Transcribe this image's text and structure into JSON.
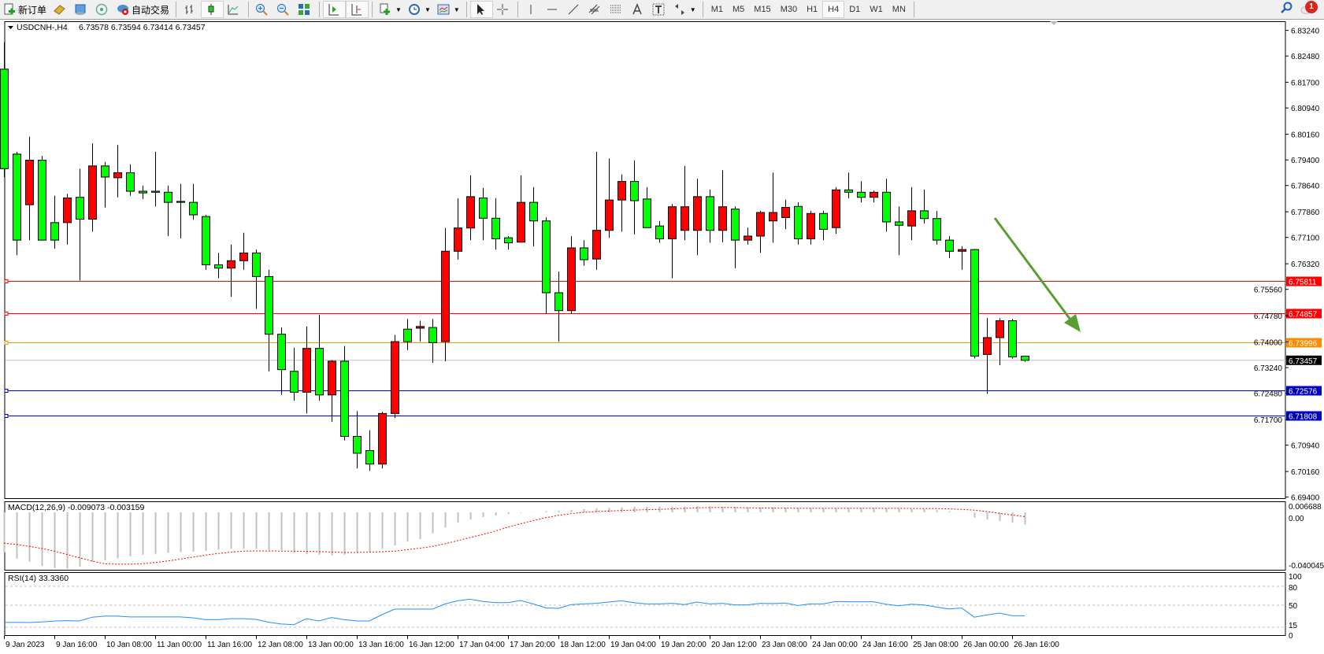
{
  "toolbar": {
    "new_order_label": "新订单",
    "auto_trading_label": "自动交易",
    "timeframes": [
      "M1",
      "M5",
      "M15",
      "M30",
      "H1",
      "H4",
      "D1",
      "W1",
      "MN"
    ],
    "active_timeframe": "H4",
    "notification_count": "1"
  },
  "chart_header": {
    "symbol_label": "USDCNH-,H4",
    "ohlc_text": "6.73578 6.73594 6.73414 6.73457"
  },
  "chart_data": [
    {
      "type": "candlestick",
      "symbol": "USDCNH-",
      "timeframe": "H4",
      "ylim": [
        6.694,
        6.8324
      ],
      "price_ticks": [
        "6.83240",
        "6.82480",
        "6.81700",
        "6.80940",
        "6.80160",
        "6.79400",
        "6.78640",
        "6.77860",
        "6.77100",
        "6.76320",
        "6.75560",
        "6.74780",
        "6.74000",
        "6.73240",
        "6.72480",
        "6.71700",
        "6.70940",
        "6.70160",
        "6.69400"
      ],
      "x_tick_labels": [
        "9 Jan 2023",
        "9 Jan 16:00",
        "10 Jan 08:00",
        "11 Jan 00:00",
        "11 Jan 16:00",
        "12 Jan 08:00",
        "13 Jan 00:00",
        "13 Jan 16:00",
        "16 Jan 12:00",
        "17 Jan 04:00",
        "17 Jan 20:00",
        "18 Jan 12:00",
        "19 Jan 04:00",
        "19 Jan 20:00",
        "20 Jan 12:00",
        "23 Jan 08:00",
        "24 Jan 00:00",
        "24 Jan 16:00",
        "25 Jan 08:00",
        "26 Jan 00:00",
        "26 Jan 16:00"
      ],
      "bull_color": "#ff0000",
      "bear_color": "#00ff00",
      "ohlc": [
        [
          6.8209,
          6.8289,
          6.7889,
          6.7914
        ],
        [
          6.7957,
          6.7964,
          6.7657,
          6.7702
        ],
        [
          6.7807,
          6.8009,
          6.7702,
          6.7939
        ],
        [
          6.7939,
          6.7952,
          6.7702,
          6.7702
        ],
        [
          6.7754,
          6.7834,
          6.7677,
          6.7702
        ],
        [
          6.7754,
          6.7839,
          6.7689,
          6.7827
        ],
        [
          6.7829,
          6.7914,
          6.7582,
          6.7764
        ],
        [
          6.7764,
          6.7989,
          6.7727,
          6.7922
        ],
        [
          6.7922,
          6.7934,
          6.7799,
          6.7889
        ],
        [
          6.7887,
          6.7984,
          6.7829,
          6.7902
        ],
        [
          6.7902,
          6.7927,
          6.7834,
          6.7847
        ],
        [
          6.7847,
          6.7864,
          6.7824,
          6.7842
        ],
        [
          6.7847,
          6.7964,
          6.7802,
          6.7844
        ],
        [
          6.7844,
          6.7864,
          6.7714,
          6.7814
        ],
        [
          6.7817,
          6.7869,
          6.7707,
          6.7814
        ],
        [
          6.7814,
          6.7869,
          6.7762,
          6.7777
        ],
        [
          6.7772,
          6.7777,
          6.7614,
          6.7629
        ],
        [
          6.7629,
          6.7664,
          6.7589,
          6.7619
        ],
        [
          6.7619,
          6.7689,
          6.7534,
          6.7641
        ],
        [
          6.7641,
          6.7724,
          6.7614,
          6.7664
        ],
        [
          6.7664,
          6.7674,
          6.7498,
          6.7594
        ],
        [
          6.7594,
          6.7614,
          6.7313,
          6.7423
        ],
        [
          6.7423,
          6.7443,
          6.7243,
          6.7318
        ],
        [
          6.7313,
          6.7383,
          6.7226,
          6.7251
        ],
        [
          6.7251,
          6.7446,
          6.7188,
          6.7381
        ],
        [
          6.7381,
          6.7481,
          6.7226,
          6.7243
        ],
        [
          6.7243,
          6.7346,
          6.7163,
          6.7343
        ],
        [
          6.7343,
          6.7388,
          6.7108,
          6.712
        ],
        [
          6.712,
          6.7195,
          6.7025,
          6.707
        ],
        [
          6.7078,
          6.7138,
          6.7018,
          6.7038
        ],
        [
          6.7038,
          6.7193,
          6.7025,
          6.7188
        ],
        [
          6.7188,
          6.7421,
          6.7175,
          6.7401
        ],
        [
          6.7438,
          6.7468,
          6.7376,
          6.7401
        ],
        [
          6.7441,
          6.7463,
          6.7401,
          6.7446
        ],
        [
          6.7443,
          6.7468,
          6.7338,
          6.7398
        ],
        [
          6.7401,
          6.7738,
          6.7343,
          6.7669
        ],
        [
          6.7669,
          6.7826,
          6.7644,
          6.7738
        ],
        [
          6.7738,
          6.7894,
          6.7702,
          6.7831
        ],
        [
          6.7827,
          6.7857,
          6.7702,
          6.7767
        ],
        [
          6.7767,
          6.7827,
          6.7674,
          6.7706
        ],
        [
          6.7709,
          6.7714,
          6.7674,
          6.7694
        ],
        [
          6.7696,
          6.7894,
          6.7696,
          6.7814
        ],
        [
          6.7814,
          6.7859,
          6.7684,
          6.7759
        ],
        [
          6.7759,
          6.7769,
          6.7483,
          6.7546
        ],
        [
          6.7546,
          6.7609,
          6.7401,
          6.7493
        ],
        [
          6.7493,
          6.7714,
          6.7483,
          6.7679
        ],
        [
          6.7679,
          6.7702,
          6.7626,
          6.7644
        ],
        [
          6.7646,
          6.7964,
          6.7614,
          6.7731
        ],
        [
          6.7731,
          6.7944,
          6.7709,
          6.7821
        ],
        [
          6.7821,
          6.7897,
          6.7727,
          6.7876
        ],
        [
          6.7876,
          6.7939,
          6.7719,
          6.7819
        ],
        [
          6.7824,
          6.7859,
          6.7739,
          6.7739
        ],
        [
          6.7744,
          6.7759,
          6.7694,
          6.7706
        ],
        [
          6.7706,
          6.7809,
          6.7589,
          6.7801
        ],
        [
          6.7731,
          6.7922,
          6.7702,
          6.7801
        ],
        [
          6.7731,
          6.7884,
          6.7657,
          6.7831
        ],
        [
          6.7831,
          6.7852,
          6.7694,
          6.7731
        ],
        [
          6.7731,
          6.7909,
          6.7696,
          6.7801
        ],
        [
          6.7794,
          6.7802,
          6.7619,
          6.7702
        ],
        [
          6.7702,
          6.7739,
          6.7689,
          6.7714
        ],
        [
          6.7714,
          6.7789,
          6.7664,
          6.7784
        ],
        [
          6.7759,
          6.7902,
          6.7694,
          6.7784
        ],
        [
          6.7769,
          6.7822,
          6.7734,
          6.7799
        ],
        [
          6.7802,
          6.7814,
          6.7689,
          6.7706
        ],
        [
          6.7706,
          6.7789,
          6.7689,
          6.7781
        ],
        [
          6.7781,
          6.7789,
          6.7702,
          6.7734
        ],
        [
          6.7739,
          6.7859,
          6.7721,
          6.7851
        ],
        [
          6.7851,
          6.7902,
          6.7826,
          6.7844
        ],
        [
          6.7844,
          6.7877,
          6.7814,
          6.7829
        ],
        [
          6.7829,
          6.7849,
          6.7814,
          6.7844
        ],
        [
          6.7844,
          6.7884,
          6.7727,
          6.7756
        ],
        [
          6.7756,
          6.7802,
          6.7657,
          6.7746
        ],
        [
          6.7744,
          6.7859,
          6.7702,
          6.7789
        ],
        [
          6.7789,
          6.7852,
          6.7751,
          6.7766
        ],
        [
          6.7766,
          6.7789,
          6.7689,
          6.7702
        ],
        [
          6.7702,
          6.7714,
          6.7649,
          6.7669
        ],
        [
          6.7669,
          6.7684,
          6.7614,
          6.7674
        ],
        [
          6.7674,
          6.7676,
          6.7351,
          6.7358
        ],
        [
          6.7363,
          6.7471,
          6.7246,
          6.7413
        ],
        [
          6.7413,
          6.7471,
          6.7331,
          6.7463
        ],
        [
          6.7463,
          6.7468,
          6.7351,
          6.7356
        ],
        [
          6.73578,
          6.73594,
          6.73414,
          6.73457
        ]
      ],
      "levels": [
        {
          "price": "6.75811",
          "color": "#ff0000"
        },
        {
          "price": "6.74857",
          "color": "#ff0000"
        },
        {
          "price": "6.73996",
          "color": "#ff8c00"
        },
        {
          "price": "6.72576",
          "color": "#0000c0"
        },
        {
          "price": "6.71808",
          "color": "#0000c0"
        }
      ],
      "current_price": {
        "price": "6.73457",
        "color": "#000000"
      },
      "annotation_arrow_color": "#5a9e32"
    },
    {
      "type": "macd",
      "label": "MACD(12,26,9) -0.009073 -0.003159",
      "axis_labels": [
        "0.006688",
        "0.00",
        "-0.040045"
      ],
      "ylim": [
        -0.040045,
        0.006688
      ],
      "histogram_color": "#c0c0c0",
      "signal_color": "#ff0000",
      "histogram": [
        -0.03,
        -0.0347,
        -0.0369,
        -0.0402,
        -0.0416,
        -0.0421,
        -0.0408,
        -0.0369,
        -0.0359,
        -0.0345,
        -0.0329,
        -0.0317,
        -0.031,
        -0.0304,
        -0.0298,
        -0.0294,
        -0.029,
        -0.028,
        -0.0274,
        -0.0272,
        -0.0274,
        -0.0284,
        -0.0284,
        -0.0304,
        -0.0314,
        -0.0317,
        -0.0323,
        -0.0317,
        -0.0304,
        -0.0298,
        -0.0274,
        -0.0247,
        -0.0219,
        -0.02,
        -0.0157,
        -0.0114,
        -0.0078,
        -0.0055,
        -0.0035,
        -0.0024,
        -0.0012,
        -0.0004,
        0.0002,
        0.0008,
        0.0012,
        0.0018,
        0.0024,
        0.003,
        0.0034,
        0.0038,
        0.004,
        0.0042,
        0.0043,
        0.0044,
        0.0045,
        0.0045,
        0.0045,
        0.0042,
        0.004,
        0.0038,
        0.0036,
        0.0036,
        0.0034,
        0.0032,
        0.003,
        0.003,
        0.003,
        0.0032,
        0.0032,
        0.0032,
        0.003,
        0.0028,
        0.0025,
        0.0022,
        0.0016,
        0.0008,
        0.0002,
        -0.004,
        -0.0055,
        -0.0065,
        -0.0078,
        -0.009073
      ],
      "signal": [
        -0.0231,
        -0.024,
        -0.0255,
        -0.027,
        -0.029,
        -0.0315,
        -0.034,
        -0.0365,
        -0.0385,
        -0.0388,
        -0.0388,
        -0.0385,
        -0.0375,
        -0.0364,
        -0.035,
        -0.0335,
        -0.032,
        -0.0308,
        -0.0298,
        -0.029,
        -0.0289,
        -0.0289,
        -0.029,
        -0.029,
        -0.0292,
        -0.0294,
        -0.0297,
        -0.03,
        -0.03,
        -0.0298,
        -0.0295,
        -0.029,
        -0.028,
        -0.0268,
        -0.0255,
        -0.0235,
        -0.0212,
        -0.0188,
        -0.0165,
        -0.014,
        -0.011,
        -0.0085,
        -0.0062,
        -0.004,
        -0.0022,
        -0.001,
        0.0,
        0.0006,
        0.001,
        0.0014,
        0.0017,
        0.002,
        0.0022,
        0.0026,
        0.003,
        0.0034,
        0.0036,
        0.0037,
        0.0036,
        0.0034,
        0.0033,
        0.0032,
        0.0032,
        0.0031,
        0.0031,
        0.003,
        0.003,
        0.0031,
        0.0031,
        0.0031,
        0.003,
        0.003,
        0.0029,
        0.0028,
        0.0028,
        0.0026,
        0.0022,
        0.0016,
        0.0006,
        -0.0008,
        -0.002,
        -0.003159
      ]
    },
    {
      "type": "line",
      "label": "RSI(14) 33.3360",
      "axis_labels": [
        "100",
        "80",
        "50",
        "15",
        "0"
      ],
      "levels": [
        80,
        50,
        15
      ],
      "ylim": [
        0,
        100
      ],
      "line_color": "#1e90ff",
      "values": [
        22.7,
        22.7,
        22.5,
        23.5,
        24.9,
        25.5,
        25,
        31,
        32.6,
        32.6,
        31.4,
        31.4,
        31.4,
        31.4,
        31.4,
        30,
        27,
        27,
        28.6,
        28.6,
        27.5,
        23,
        20.2,
        19,
        28.6,
        25,
        30.5,
        27,
        25,
        25,
        35,
        43.7,
        43.7,
        43.7,
        43.7,
        52,
        57,
        59.6,
        56,
        54,
        54,
        57.5,
        52,
        45.8,
        45,
        51,
        52,
        53,
        55,
        57,
        54,
        52,
        52,
        53,
        51,
        55,
        52,
        53,
        50.5,
        50.5,
        53,
        52.5,
        53.5,
        49.5,
        52,
        52,
        56,
        55.5,
        55.5,
        55.5,
        51.5,
        49,
        51.5,
        50.5,
        47,
        44,
        45.5,
        31,
        34.5,
        37.5,
        33.5,
        33.336
      ]
    }
  ]
}
